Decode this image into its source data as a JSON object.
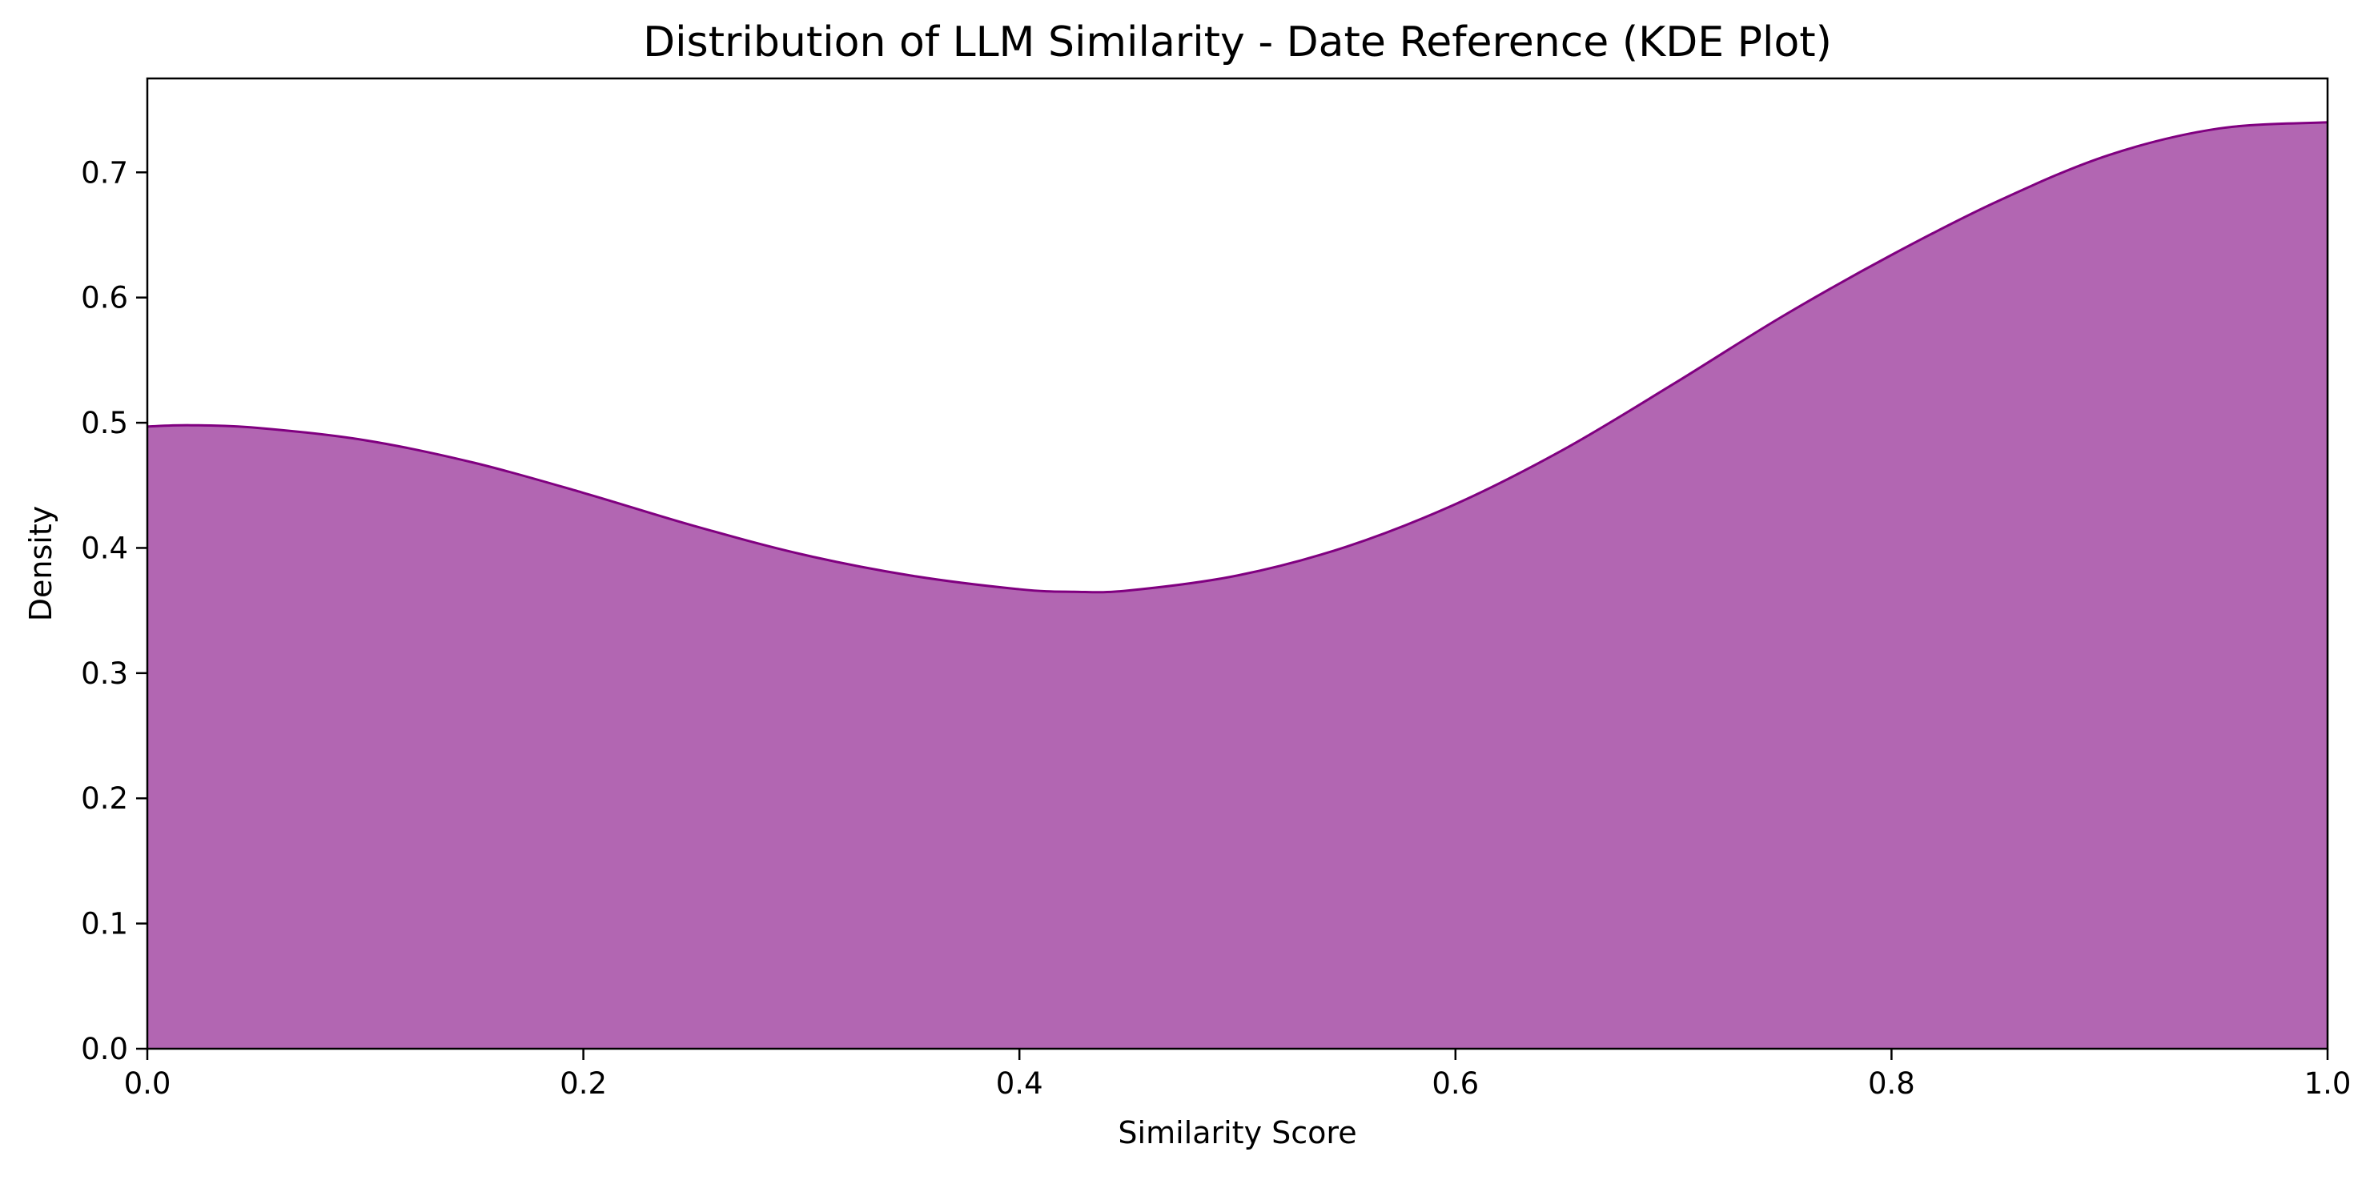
{
  "colors": {
    "fill": "#B266B2",
    "line": "#800080",
    "axis": "#000000",
    "background": "#ffffff"
  },
  "chart_data": {
    "type": "area",
    "title": "Distribution of LLM Similarity - Date Reference (KDE Plot)",
    "xlabel": "Similarity Score",
    "ylabel": "Density",
    "xlim": [
      0.0,
      1.0
    ],
    "ylim": [
      0.0,
      0.775
    ],
    "xticks": [
      "0.0",
      "0.2",
      "0.4",
      "0.6",
      "0.8",
      "1.0"
    ],
    "yticks": [
      "0.0",
      "0.1",
      "0.2",
      "0.3",
      "0.4",
      "0.5",
      "0.6",
      "0.7"
    ],
    "grid": false,
    "legend": "none",
    "series": [
      {
        "x": [
          0.0,
          0.02,
          0.05,
          0.1,
          0.15,
          0.2,
          0.25,
          0.3,
          0.35,
          0.4,
          0.425,
          0.45,
          0.5,
          0.55,
          0.6,
          0.65,
          0.7,
          0.75,
          0.8,
          0.85,
          0.9,
          0.95,
          1.0
        ],
        "y": [
          0.497,
          0.498,
          0.496,
          0.486,
          0.468,
          0.444,
          0.418,
          0.395,
          0.378,
          0.367,
          0.365,
          0.366,
          0.378,
          0.401,
          0.435,
          0.479,
          0.531,
          0.585,
          0.634,
          0.678,
          0.714,
          0.735,
          0.74
        ]
      }
    ]
  }
}
